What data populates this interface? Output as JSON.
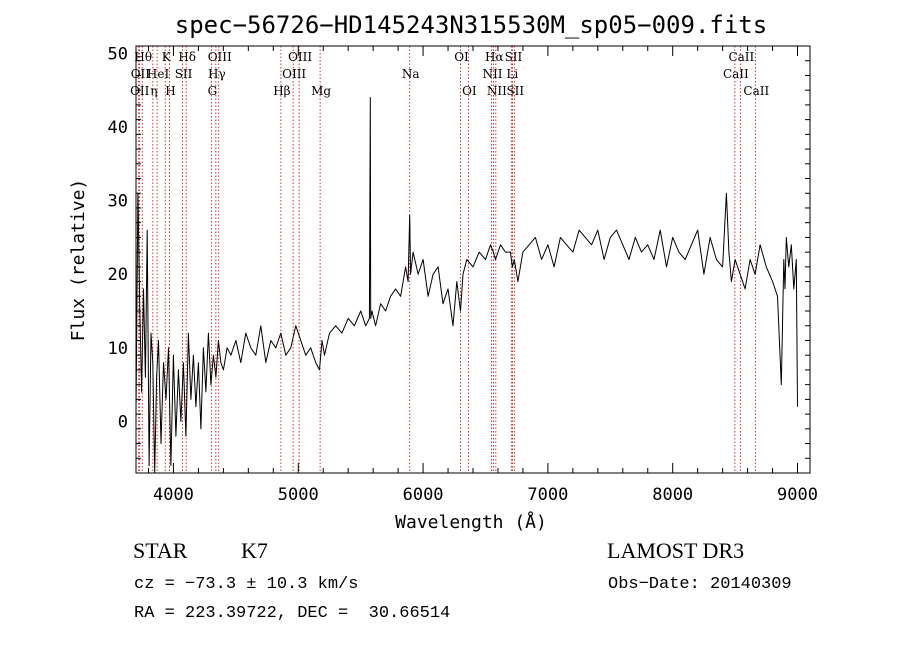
{
  "chart_data": {
    "type": "line",
    "title": "spec−56726−HD145243N315530M_sp05−009.fits",
    "xlabel": "Wavelength (Å)",
    "ylabel": "Flux (relative)",
    "xlim": [
      3700,
      9100
    ],
    "ylim": [
      -7,
      51
    ],
    "x_ticks": [
      4000,
      5000,
      6000,
      7000,
      8000,
      9000
    ],
    "y_ticks": [
      0,
      10,
      20,
      30,
      40,
      50
    ],
    "y_tick_labels": [
      "0",
      "10",
      "20",
      "30",
      "40",
      "50"
    ],
    "grid": false,
    "series": [
      {
        "name": "flux",
        "x": [
          3700,
          3715,
          3730,
          3745,
          3760,
          3775,
          3790,
          3805,
          3820,
          3835,
          3850,
          3865,
          3880,
          3900,
          3920,
          3940,
          3960,
          3980,
          4000,
          4020,
          4040,
          4060,
          4080,
          4100,
          4120,
          4140,
          4160,
          4180,
          4200,
          4220,
          4240,
          4260,
          4280,
          4300,
          4320,
          4340,
          4360,
          4380,
          4400,
          4430,
          4460,
          4500,
          4540,
          4580,
          4620,
          4660,
          4700,
          4740,
          4780,
          4820,
          4860,
          4900,
          4940,
          4980,
          5020,
          5060,
          5100,
          5140,
          5170,
          5190,
          5210,
          5250,
          5300,
          5350,
          5400,
          5450,
          5500,
          5540,
          5570,
          5577,
          5580,
          5590,
          5620,
          5660,
          5700,
          5740,
          5780,
          5820,
          5860,
          5880,
          5893,
          5900,
          5920,
          5960,
          6000,
          6040,
          6080,
          6120,
          6160,
          6200,
          6240,
          6270,
          6300,
          6320,
          6350,
          6400,
          6450,
          6500,
          6540,
          6563,
          6580,
          6620,
          6660,
          6700,
          6716,
          6731,
          6760,
          6800,
          6850,
          6900,
          6950,
          7000,
          7050,
          7100,
          7150,
          7200,
          7250,
          7300,
          7350,
          7400,
          7450,
          7500,
          7550,
          7600,
          7650,
          7700,
          7750,
          7800,
          7850,
          7900,
          7950,
          8000,
          8050,
          8100,
          8150,
          8200,
          8250,
          8300,
          8350,
          8400,
          8430,
          8450,
          8470,
          8500,
          8540,
          8580,
          8620,
          8660,
          8700,
          8750,
          8800,
          8840,
          8870,
          8890,
          8900,
          8910,
          8930,
          8950,
          8970,
          8990,
          9000
        ],
        "y": [
          1,
          31,
          16,
          4,
          18,
          6,
          26,
          -6,
          12,
          8,
          -7,
          6,
          11,
          -3,
          8,
          3,
          10,
          -6,
          9,
          -2,
          7,
          0,
          8,
          -2,
          12,
          3,
          9,
          2,
          8,
          -1,
          10,
          4,
          12,
          5,
          9,
          6,
          11,
          8,
          7,
          10,
          9,
          11,
          8,
          12,
          10,
          9,
          13,
          8,
          11,
          10,
          12,
          9,
          10,
          13,
          11,
          9,
          10,
          8,
          7,
          11,
          9,
          12,
          13,
          12,
          14,
          13,
          15,
          13,
          14,
          44,
          14,
          15,
          13,
          16,
          15,
          17,
          18,
          17,
          21,
          19,
          28,
          20,
          23,
          20,
          22,
          17,
          20,
          21,
          16,
          18,
          13,
          19,
          15,
          20,
          22,
          21,
          23,
          22,
          24,
          23,
          22,
          24,
          23,
          23,
          21,
          22,
          19,
          23,
          24,
          25,
          22,
          24,
          21,
          25,
          24,
          23,
          26,
          25,
          24,
          26,
          22,
          25,
          26,
          24,
          22,
          25,
          23,
          24,
          22,
          26,
          21,
          25,
          23,
          22,
          24,
          26,
          20,
          25,
          22,
          21,
          31,
          23,
          19,
          22,
          20,
          18,
          22,
          20,
          24,
          21,
          19,
          17,
          5,
          22,
          18,
          25,
          21,
          24,
          18,
          22,
          2
        ]
      }
    ],
    "lines": [
      {
        "wl": 3722,
        "label": "OII",
        "row": 3
      },
      {
        "wl": 3727,
        "label": "OII",
        "row": 2
      },
      {
        "wl": 3750,
        "label": "Hθ",
        "row": 1
      },
      {
        "wl": 3835,
        "label": "η",
        "row": 3
      },
      {
        "wl": 3869,
        "label": "HeI",
        "row": 2
      },
      {
        "wl": 3934,
        "label": "K",
        "row": 1
      },
      {
        "wl": 3968,
        "label": "H",
        "row": 3
      },
      {
        "wl": 4073,
        "label": "SII",
        "row": 2
      },
      {
        "wl": 4102,
        "label": "Hδ",
        "row": 1
      },
      {
        "wl": 4304,
        "label": "G",
        "row": 3
      },
      {
        "wl": 4340,
        "label": "Hγ",
        "row": 2
      },
      {
        "wl": 4363,
        "label": "OIII",
        "row": 1
      },
      {
        "wl": 4861,
        "label": "Hβ",
        "row": 3
      },
      {
        "wl": 4959,
        "label": "OIII",
        "row": 2
      },
      {
        "wl": 5007,
        "label": "OIII",
        "row": 1
      },
      {
        "wl": 5175,
        "label": "Mg",
        "row": 3
      },
      {
        "wl": 5893,
        "label": "Na",
        "row": 2
      },
      {
        "wl": 6300,
        "label": "OI",
        "row": 1
      },
      {
        "wl": 6363,
        "label": "OI",
        "row": 3
      },
      {
        "wl": 6548,
        "label": "NII",
        "row": 2
      },
      {
        "wl": 6563,
        "label": "Hα",
        "row": 1
      },
      {
        "wl": 6583,
        "label": "NII",
        "row": 3
      },
      {
        "wl": 6707,
        "label": "Li",
        "row": 2
      },
      {
        "wl": 6716,
        "label": "SII",
        "row": 1
      },
      {
        "wl": 6731,
        "label": "SII",
        "row": 3
      },
      {
        "wl": 8498,
        "label": "CaII",
        "row": 2
      },
      {
        "wl": 8542,
        "label": "CaII",
        "row": 1
      },
      {
        "wl": 8662,
        "label": "CaII",
        "row": 3
      }
    ]
  },
  "info": {
    "class_type": "STAR",
    "class_subtype": "K7",
    "survey": "LAMOST DR3",
    "cz": "cz = −73.3 ± 10.3 km/s",
    "obs_date": "Obs−Date: 20140309",
    "radec": "RA = 223.39722, DEC =  30.66514"
  },
  "colors": {
    "spectrum": "#000000",
    "line_markers": "#cc0000",
    "axes": "#000000",
    "background": "#ffffff"
  }
}
